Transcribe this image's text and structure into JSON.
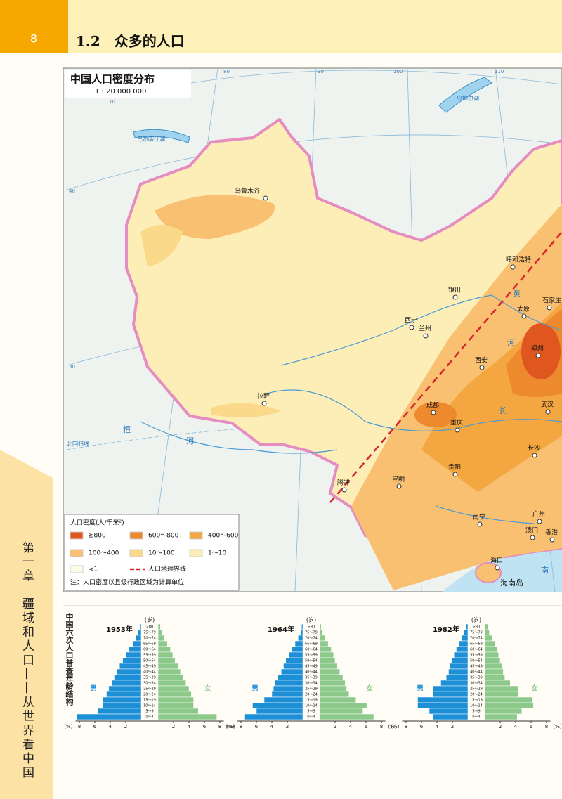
{
  "header": {
    "page_number": "8",
    "section": "1.2　众多的人口"
  },
  "sidebar": "第一章　疆域和人口——从世界看中国",
  "map": {
    "title": "中国人口密度分布",
    "scale": "1 : 20 000 000",
    "meridian_labels": [
      80,
      90,
      100,
      110
    ],
    "parallel_labels": [
      70,
      40,
      30
    ],
    "places": [
      "乌鲁木齐",
      "呼和浩特",
      "银川",
      "石家庄",
      "太原",
      "西宁",
      "兰州",
      "西安",
      "郑州",
      "拉萨",
      "成都",
      "重庆",
      "武汉",
      "长沙",
      "贵阳",
      "昆明",
      "腾冲",
      "南宁",
      "广州",
      "澳门",
      "香港",
      "海口",
      "海南岛"
    ],
    "features": [
      "巴尔喀什湖",
      "贝加尔湖",
      "恒",
      "河",
      "北回归线",
      "黄",
      "河",
      "长",
      "南"
    ],
    "legend": {
      "title": "人口密度(人/千米²)",
      "items": [
        {
          "label": "≥800",
          "color": "#e0561f"
        },
        {
          "label": "600～800",
          "color": "#ee8a2e"
        },
        {
          "label": "400～600",
          "color": "#f4a640"
        },
        {
          "label": "100～400",
          "color": "#f8c070"
        },
        {
          "label": "10～100",
          "color": "#fbd98a"
        },
        {
          "label": "1～10",
          "color": "#fdeeb8"
        },
        {
          "label": "<1",
          "color": "#fefbe6"
        },
        {
          "label": "人口地理界线",
          "color": "#d8262c"
        }
      ],
      "note": "注：人口密度以县级行政区域为计算单位"
    }
  },
  "pyramids": {
    "caption": "中国六次人口普查年龄结构",
    "age_unit": "(岁)",
    "male": "男",
    "female": "女",
    "unit": "(%)",
    "male_color": "#1d8fd6",
    "female_color": "#8dc98b",
    "xlim": [
      0,
      8.5
    ],
    "xticks": [
      2,
      4,
      6,
      8
    ],
    "ages": [
      "≥80",
      "75～79",
      "70～74",
      "65～69",
      "60～64",
      "55～59",
      "50～54",
      "45～49",
      "40～44",
      "35～39",
      "30～34",
      "25～29",
      "20～24",
      "15～19",
      "10～14",
      "5～9",
      "0～4"
    ],
    "charts": [
      {
        "title": "1953年",
        "male": [
          0.2,
          0.4,
          0.7,
          1.1,
          1.6,
          2.0,
          2.4,
          2.8,
          3.2,
          3.5,
          3.8,
          4.2,
          4.5,
          5.0,
          5.0,
          5.6,
          8.3
        ],
        "female": [
          0.3,
          0.5,
          0.8,
          1.2,
          1.6,
          1.9,
          2.2,
          2.6,
          2.9,
          3.2,
          3.6,
          4.0,
          4.3,
          4.6,
          4.6,
          5.2,
          7.6
        ]
      },
      {
        "title": "1964年",
        "male": [
          0.15,
          0.3,
          0.6,
          1.0,
          1.4,
          1.8,
          2.2,
          2.5,
          2.8,
          3.2,
          3.6,
          3.8,
          4.0,
          5.0,
          6.5,
          6.0,
          7.5
        ],
        "female": [
          0.2,
          0.4,
          0.7,
          1.1,
          1.5,
          1.8,
          2.0,
          2.3,
          2.6,
          3.0,
          3.3,
          3.5,
          3.8,
          4.7,
          6.1,
          5.6,
          7.0
        ]
      },
      {
        "title": "1982年",
        "male": [
          0.25,
          0.5,
          0.8,
          1.2,
          1.5,
          1.8,
          2.1,
          2.3,
          2.5,
          2.8,
          3.5,
          4.5,
          4.5,
          6.5,
          6.5,
          5.0,
          4.5
        ],
        "female": [
          0.4,
          0.6,
          1.0,
          1.3,
          1.6,
          1.8,
          2.0,
          2.2,
          2.4,
          2.6,
          3.3,
          4.3,
          4.4,
          6.2,
          6.3,
          4.8,
          4.2
        ]
      }
    ]
  }
}
